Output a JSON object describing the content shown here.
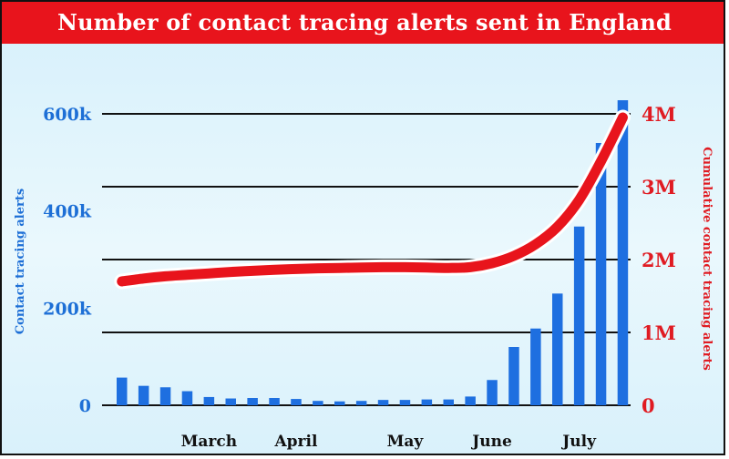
{
  "chart_data": {
    "type": "bar",
    "title": "Number of contact tracing alerts sent in England",
    "ylabel": "Contact tracing alerts",
    "y2label": "Cumulative contact tracing alerts",
    "ylim": [
      0,
      600000
    ],
    "y2lim": [
      0,
      4000000
    ],
    "yticks": [
      {
        "value": 0,
        "label": "0"
      },
      {
        "value": 200000,
        "label": "200k"
      },
      {
        "value": 400000,
        "label": "400k"
      },
      {
        "value": 600000,
        "label": "600k"
      }
    ],
    "y2ticks": [
      {
        "value": 0,
        "label": "0"
      },
      {
        "value": 1000000,
        "label": "1M"
      },
      {
        "value": 2000000,
        "label": "2M"
      },
      {
        "value": 3000000,
        "label": "3M"
      },
      {
        "value": 4000000,
        "label": "4M"
      }
    ],
    "x_labels": [
      {
        "index": 4,
        "label": "March"
      },
      {
        "index": 8,
        "label": "April"
      },
      {
        "index": 13,
        "label": "May"
      },
      {
        "index": 17,
        "label": "June"
      },
      {
        "index": 21,
        "label": "July"
      }
    ],
    "series": [
      {
        "values": [
          57000,
          40000,
          37000,
          29000,
          17000,
          14000,
          15000,
          15000,
          13000,
          9000,
          8000,
          9000,
          11000,
          11000,
          12000,
          12000,
          18000,
          52000,
          120000,
          158000,
          230000,
          368000,
          540000,
          628000
        ],
        "color": "#1e6fe0"
      },
      {
        "type": "line",
        "axis": "right",
        "values": [
          1700000,
          1740000,
          1770000,
          1790000,
          1810000,
          1830000,
          1845000,
          1860000,
          1870000,
          1880000,
          1885000,
          1890000,
          1895000,
          1895000,
          1890000,
          1885000,
          1895000,
          1950000,
          2050000,
          2210000,
          2450000,
          2820000,
          3350000,
          3950000
        ],
        "color": "#e8141c"
      }
    ],
    "gridlines": true
  }
}
